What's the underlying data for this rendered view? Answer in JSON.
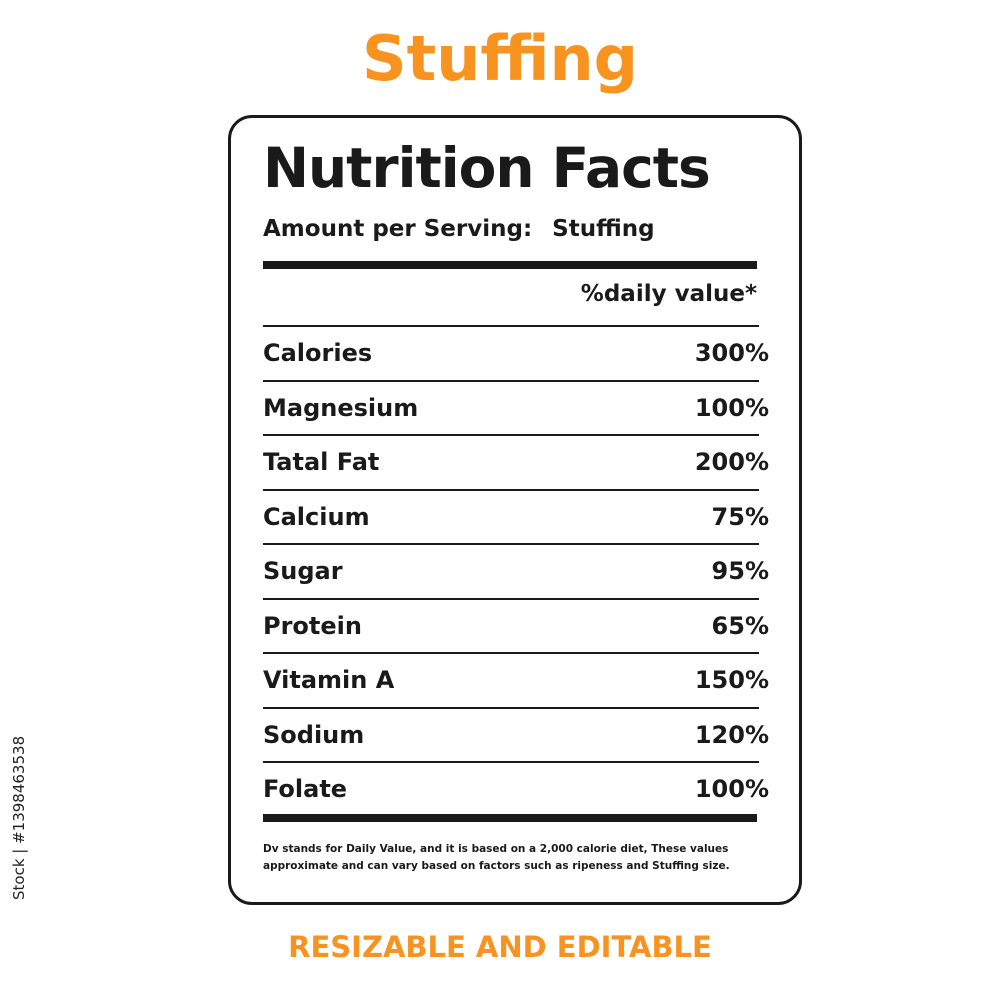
{
  "title": "Stuffing",
  "label": {
    "heading": "Nutrition Facts",
    "amount_label": "Amount per Serving:",
    "amount_value": "Stuffing",
    "daily_value_header": "%daily value*",
    "rows": [
      {
        "name": "Calories",
        "value": "300%"
      },
      {
        "name": "Magnesium",
        "value": "100%"
      },
      {
        "name": "Tatal Fat",
        "value": "200%"
      },
      {
        "name": "Calcium",
        "value": "75%"
      },
      {
        "name": "Sugar",
        "value": "95%"
      },
      {
        "name": "Protein",
        "value": "65%"
      },
      {
        "name": "Vitamin A",
        "value": "150%"
      },
      {
        "name": "Sodium",
        "value": "120%"
      },
      {
        "name": "Folate",
        "value": "100%"
      }
    ],
    "footnote": "Dv stands for Daily Value, and it is based on a 2,000 calorie diet, These values approximate and can vary based on factors such as ripeness and Stuffing size."
  },
  "subtitle": "RESIZABLE AND EDITABLE",
  "watermark": "Stock | #1398463538",
  "colors": {
    "accent": "#f7931e",
    "text": "#1a1a1a"
  }
}
